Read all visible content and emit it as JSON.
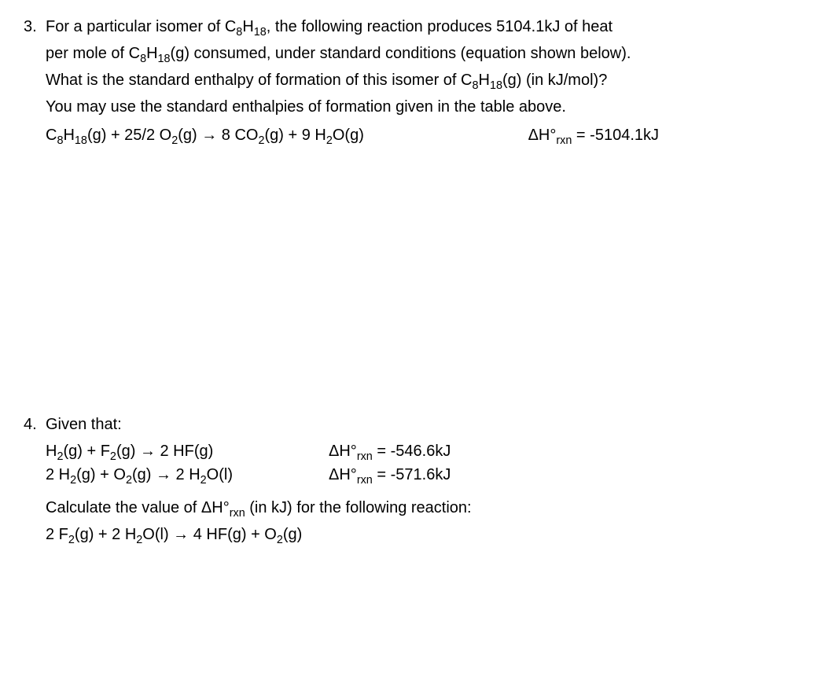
{
  "q3": {
    "number": "3.",
    "text1_a": "For a particular isomer of C",
    "text1_b": ", the following reaction produces 5104.1kJ of heat",
    "text2_a": "per mole of C",
    "text2_b": "(g) consumed, under standard conditions (equation shown below).",
    "text3_a": "What is the standard enthalpy of formation of this isomer of C",
    "text3_b": "(g) (in kJ/mol)?",
    "text4": "You may use the standard enthalpies of formation given in the table above.",
    "eq_a": "C",
    "eq_b": "(g) + 25/2 O",
    "eq_c": "(g)  →   8 CO",
    "eq_d": "(g) + 9 H",
    "eq_e": "O(g)",
    "dh_label": "ΔH°",
    "dh_sub": "rxn",
    "dh_val": " = -5104.1kJ",
    "s8": "8",
    "s18": "18",
    "s2": "2"
  },
  "q4": {
    "number": "4.",
    "given": "Given that:",
    "r1_a": "H",
    "r1_b": "(g) + F",
    "r1_c": "(g)  →   2 HF(g)",
    "r1_dh": " = -546.6kJ",
    "r2_a": "2 H",
    "r2_b": "(g) + O",
    "r2_c": "(g)  →   2 H",
    "r2_d": "O(l)",
    "r2_dh": " = -571.6kJ",
    "calc_a": "Calculate the value of ΔH°",
    "calc_b": " (in kJ) for the following reaction:",
    "tgt_a": "2 F",
    "tgt_b": "(g) + 2 H",
    "tgt_c": "O(l)   →   4 HF(g)  + O",
    "tgt_d": "(g)",
    "s2": "2",
    "dh_label": "ΔH°",
    "dh_sub": "rxn"
  }
}
